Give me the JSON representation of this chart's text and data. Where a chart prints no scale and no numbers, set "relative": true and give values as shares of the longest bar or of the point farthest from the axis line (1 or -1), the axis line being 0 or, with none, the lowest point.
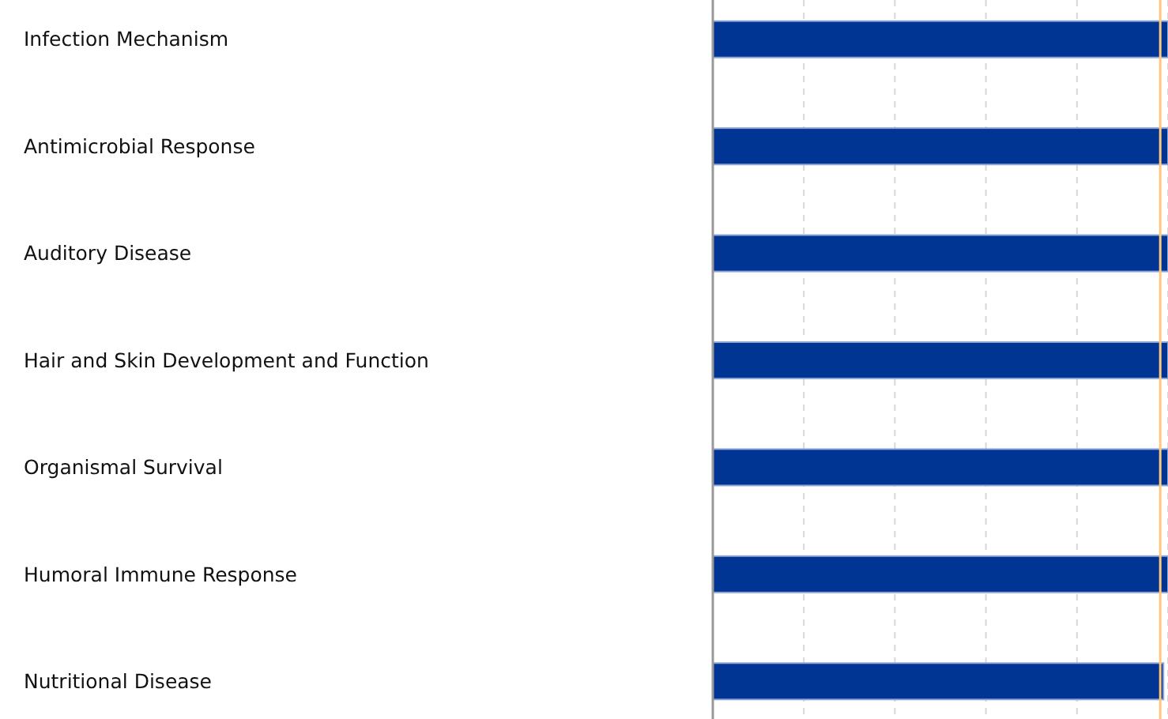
{
  "chart_data": {
    "type": "bar",
    "orientation": "horizontal",
    "relative": true,
    "categories": [
      "Infection Mechanism",
      "Antimicrobial Response",
      "Auditory Disease",
      "Hair and Skin Development and Function",
      "Organismal Survival",
      "Humoral Immune Response",
      "Nutritional Disease"
    ],
    "values": [
      1,
      1,
      1,
      1,
      1,
      1,
      0.99
    ],
    "color": "#003594",
    "grid": "x",
    "ref_lines": [
      {
        "axis": "x",
        "value": 0.983,
        "color": "#ffc87a"
      }
    ]
  }
}
